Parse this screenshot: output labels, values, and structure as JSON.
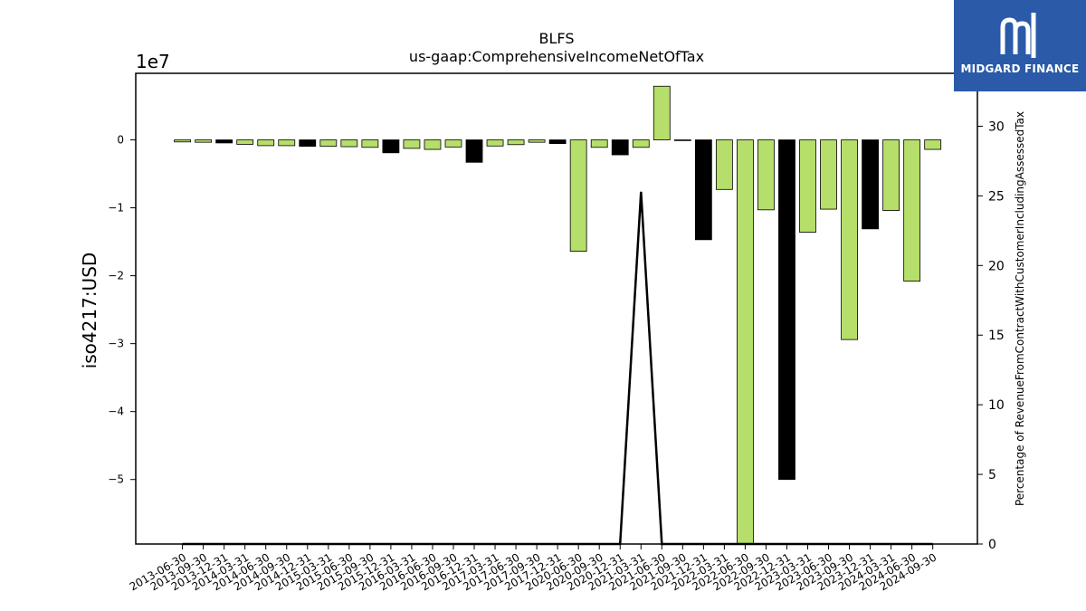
{
  "chart_data": {
    "type": "bar",
    "title": "BLFS",
    "subtitle": "us-gaap:ComprehensiveIncomeNetOfTax",
    "ylabel": "iso4217:USD",
    "y_offset_label": "1e7",
    "ylim": [
      -59500000,
      9800000
    ],
    "yticks": [
      0,
      -10000000,
      -20000000,
      -30000000,
      -40000000,
      -50000000
    ],
    "ytick_labels": [
      "0",
      "−1",
      "−2",
      "−3",
      "−4",
      "−5"
    ],
    "y2label": "Percentage of RevenueFromContractWithCustomerIncludingAssessedTax",
    "y2lim": [
      0,
      33.8
    ],
    "y2ticks": [
      0,
      5,
      10,
      15,
      20,
      25,
      30
    ],
    "categories": [
      "2013-06-30",
      "2013-09-30",
      "2013-12-31",
      "2014-03-31",
      "2014-06-30",
      "2014-09-30",
      "2014-12-31",
      "2015-03-31",
      "2015-06-30",
      "2015-09-30",
      "2015-12-31",
      "2016-03-31",
      "2016-06-30",
      "2016-09-30",
      "2016-12-31",
      "2017-03-31",
      "2017-06-30",
      "2017-09-30",
      "2017-12-31",
      "2020-06-30",
      "2020-09-30",
      "2020-12-31",
      "2021-03-31",
      "2021-06-30",
      "2021-09-30",
      "2021-12-31",
      "2022-03-31",
      "2022-06-30",
      "2022-09-30",
      "2022-12-31",
      "2023-03-31",
      "2023-06-30",
      "2023-09-30",
      "2023-12-31",
      "2024-03-31",
      "2024-06-30",
      "2024-09-30"
    ],
    "values": [
      -300000,
      -350000,
      -450000,
      -650000,
      -850000,
      -850000,
      -950000,
      -950000,
      -1000000,
      -1100000,
      -1900000,
      -1250000,
      -1400000,
      -1050000,
      -3300000,
      -900000,
      -700000,
      -350000,
      -550000,
      -16400000,
      -1100000,
      -2200000,
      -1100000,
      7900000,
      -50000,
      -14700000,
      -7300000,
      -59500000,
      -10300000,
      -50000000,
      -13600000,
      -10200000,
      -29400000,
      -13100000,
      -10400000,
      -20800000,
      -1400000
    ],
    "bar_colors": [
      "#b5de6a",
      "#b5de6a",
      "#000000",
      "#b5de6a",
      "#b5de6a",
      "#b5de6a",
      "#000000",
      "#b5de6a",
      "#b5de6a",
      "#b5de6a",
      "#000000",
      "#b5de6a",
      "#b5de6a",
      "#b5de6a",
      "#000000",
      "#b5de6a",
      "#b5de6a",
      "#b5de6a",
      "#000000",
      "#b5de6a",
      "#b5de6a",
      "#000000",
      "#b5de6a",
      "#b5de6a",
      "#000000",
      "#000000",
      "#b5de6a",
      "#b5de6a",
      "#b5de6a",
      "#000000",
      "#b5de6a",
      "#b5de6a",
      "#b5de6a",
      "#000000",
      "#b5de6a",
      "#b5de6a",
      "#b5de6a"
    ],
    "line": {
      "color": "#000000",
      "points": [
        {
          "x": "2021-03-31",
          "y": 25.3
        }
      ]
    },
    "grid": false,
    "colors": {
      "green": "#b5de6a",
      "black": "#000000"
    }
  },
  "logo": {
    "text": "MIDGARD FINANCE",
    "bg": "#2a5aa8",
    "icon": "midgard-logo-icon"
  }
}
